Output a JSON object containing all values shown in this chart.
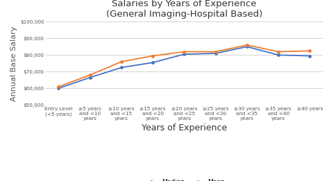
{
  "title": "Salaries by Years of Experience\n(General Imaging-Hospital Based)",
  "xlabel": "Years of Experience",
  "ylabel": "Annual Base Salary",
  "categories": [
    "Entry Level\n(<5 years)",
    "≥5 years\nand <10\nyears",
    "≥10 years\nand <15\nyears",
    "≥15 years\nand <20\nyears",
    "≥20 years\nand <25\nyears",
    "≥25 years\nand <30\nyears",
    "≥30 years\nand <35\nyears",
    "≥35 years\nand <40\nyears",
    "≥40 years"
  ],
  "median": [
    60000,
    66500,
    72500,
    75500,
    80500,
    81000,
    85000,
    80000,
    79500
  ],
  "mean": [
    61000,
    68000,
    76000,
    79500,
    82000,
    82000,
    86000,
    82000,
    82500
  ],
  "median_color": "#4472C4",
  "mean_color": "#ED7D31",
  "ylim": [
    50000,
    100000
  ],
  "yticks": [
    50000,
    60000,
    70000,
    80000,
    90000,
    100000
  ],
  "bg_color": "#FFFFFF",
  "grid_color": "#CCCCCC",
  "title_fontsize": 9.5,
  "axis_label_fontsize": 9,
  "tick_fontsize": 5.2,
  "legend_fontsize": 6.5
}
